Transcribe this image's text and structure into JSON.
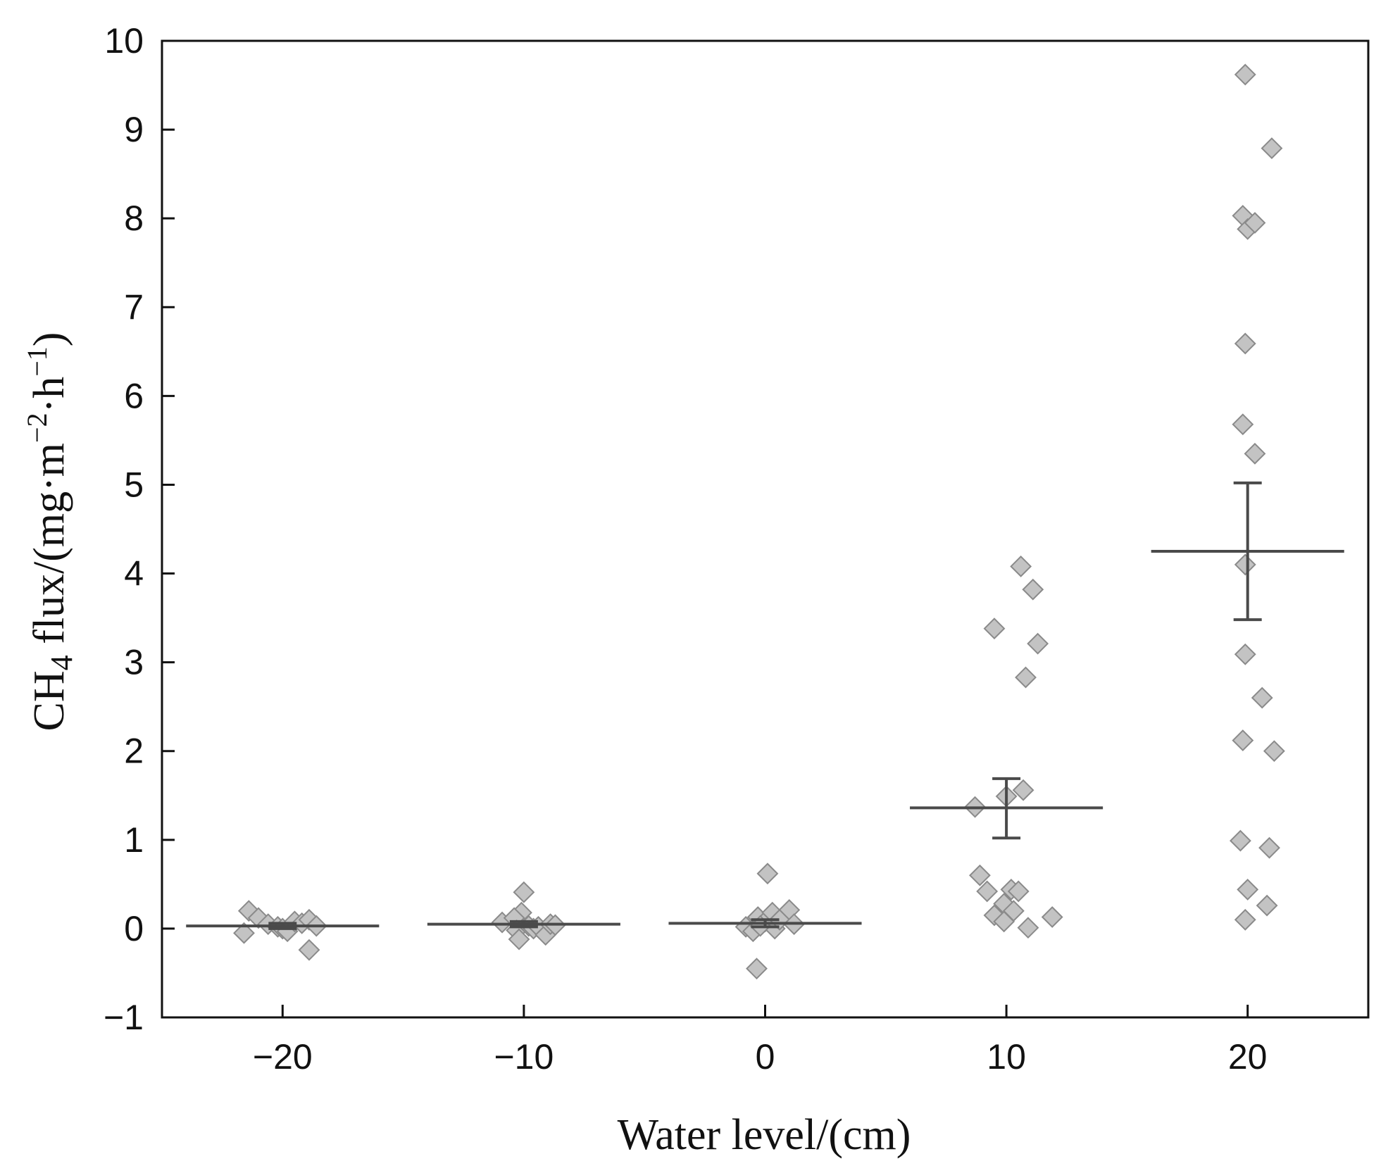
{
  "chart_data": {
    "type": "scatter",
    "title": "",
    "xlabel": "Water level/(cm)",
    "ylabel": {
      "prefix": "CH",
      "sub": "4",
      "mid": " flux/(mg·m",
      "sup1": "−2",
      "mid2": "·h",
      "sup2": "−1",
      "suffix": ")"
    },
    "xlim": [
      -25,
      25
    ],
    "ylim": [
      -1,
      10
    ],
    "x_ticks": [
      -20,
      -10,
      0,
      10,
      20
    ],
    "x_tick_labels": [
      "−20",
      "−10",
      "0",
      "10",
      "20"
    ],
    "y_ticks": [
      -1,
      0,
      1,
      2,
      3,
      4,
      5,
      6,
      7,
      8,
      9,
      10
    ],
    "y_tick_labels": [
      "−1",
      "0",
      "1",
      "2",
      "3",
      "4",
      "5",
      "6",
      "7",
      "8",
      "9",
      "10"
    ],
    "grid": false,
    "colors": {
      "marker_fill": "#c3c3c3",
      "marker_stroke": "#8a8a8a",
      "summary": "#4a4a4a",
      "axis": "#111111"
    },
    "groups": [
      {
        "level": -20,
        "mean": 0.03,
        "se_low": 0.0,
        "se_high": 0.06,
        "points": [
          {
            "x": -21.4,
            "y": 0.2
          },
          {
            "x": -21.6,
            "y": -0.05
          },
          {
            "x": -21.0,
            "y": 0.12
          },
          {
            "x": -20.6,
            "y": 0.05
          },
          {
            "x": -20.2,
            "y": 0.02
          },
          {
            "x": -20.0,
            "y": 0.0
          },
          {
            "x": -19.8,
            "y": -0.03
          },
          {
            "x": -19.5,
            "y": 0.08
          },
          {
            "x": -19.2,
            "y": 0.06
          },
          {
            "x": -18.9,
            "y": 0.1
          },
          {
            "x": -18.6,
            "y": 0.03
          },
          {
            "x": -18.9,
            "y": -0.24
          }
        ]
      },
      {
        "level": -10,
        "mean": 0.05,
        "se_low": 0.02,
        "se_high": 0.08,
        "points": [
          {
            "x": -10.0,
            "y": 0.41
          },
          {
            "x": -10.1,
            "y": 0.18
          },
          {
            "x": -10.9,
            "y": 0.07
          },
          {
            "x": -10.4,
            "y": 0.12
          },
          {
            "x": -10.3,
            "y": -0.02
          },
          {
            "x": -10.2,
            "y": -0.12
          },
          {
            "x": -9.8,
            "y": 0.03
          },
          {
            "x": -9.6,
            "y": 0.0
          },
          {
            "x": -9.4,
            "y": 0.02
          },
          {
            "x": -9.1,
            "y": -0.07
          },
          {
            "x": -8.9,
            "y": 0.05
          },
          {
            "x": -8.7,
            "y": 0.04
          }
        ]
      },
      {
        "level": 0,
        "mean": 0.06,
        "se_low": 0.02,
        "se_high": 0.1,
        "points": [
          {
            "x": 0.1,
            "y": 0.62
          },
          {
            "x": 1.0,
            "y": 0.21
          },
          {
            "x": -0.3,
            "y": 0.13
          },
          {
            "x": -0.8,
            "y": 0.02
          },
          {
            "x": -0.5,
            "y": -0.03
          },
          {
            "x": 0.0,
            "y": 0.08
          },
          {
            "x": 0.3,
            "y": 0.18
          },
          {
            "x": 0.4,
            "y": 0.0
          },
          {
            "x": 0.6,
            "y": 0.1
          },
          {
            "x": 1.2,
            "y": 0.05
          },
          {
            "x": -0.2,
            "y": 0.03
          },
          {
            "x": -0.35,
            "y": -0.45
          }
        ]
      },
      {
        "level": 10,
        "mean": 1.36,
        "se_low": 1.02,
        "se_high": 1.69,
        "points": [
          {
            "x": 10.6,
            "y": 4.08
          },
          {
            "x": 11.1,
            "y": 3.82
          },
          {
            "x": 9.5,
            "y": 3.38
          },
          {
            "x": 11.3,
            "y": 3.21
          },
          {
            "x": 10.8,
            "y": 2.83
          },
          {
            "x": 10.7,
            "y": 1.56
          },
          {
            "x": 10.0,
            "y": 1.49
          },
          {
            "x": 8.7,
            "y": 1.37
          },
          {
            "x": 8.9,
            "y": 0.6
          },
          {
            "x": 9.2,
            "y": 0.42
          },
          {
            "x": 10.2,
            "y": 0.44
          },
          {
            "x": 10.5,
            "y": 0.42
          },
          {
            "x": 9.9,
            "y": 0.28
          },
          {
            "x": 9.5,
            "y": 0.15
          },
          {
            "x": 9.9,
            "y": 0.08
          },
          {
            "x": 10.3,
            "y": 0.2
          },
          {
            "x": 11.9,
            "y": 0.13
          },
          {
            "x": 10.9,
            "y": 0.01
          }
        ]
      },
      {
        "level": 20,
        "mean": 4.25,
        "se_low": 3.48,
        "se_high": 5.02,
        "points": [
          {
            "x": 19.9,
            "y": 9.62
          },
          {
            "x": 21.0,
            "y": 8.79
          },
          {
            "x": 19.8,
            "y": 8.03
          },
          {
            "x": 20.0,
            "y": 7.88
          },
          {
            "x": 20.3,
            "y": 7.95
          },
          {
            "x": 19.9,
            "y": 6.59
          },
          {
            "x": 19.8,
            "y": 5.68
          },
          {
            "x": 20.3,
            "y": 5.35
          },
          {
            "x": 19.9,
            "y": 4.1
          },
          {
            "x": 19.9,
            "y": 3.09
          },
          {
            "x": 20.6,
            "y": 2.6
          },
          {
            "x": 19.8,
            "y": 2.12
          },
          {
            "x": 21.1,
            "y": 2.0
          },
          {
            "x": 19.7,
            "y": 0.99
          },
          {
            "x": 20.9,
            "y": 0.91
          },
          {
            "x": 20.0,
            "y": 0.44
          },
          {
            "x": 20.8,
            "y": 0.26
          },
          {
            "x": 19.9,
            "y": 0.1
          }
        ]
      }
    ]
  }
}
